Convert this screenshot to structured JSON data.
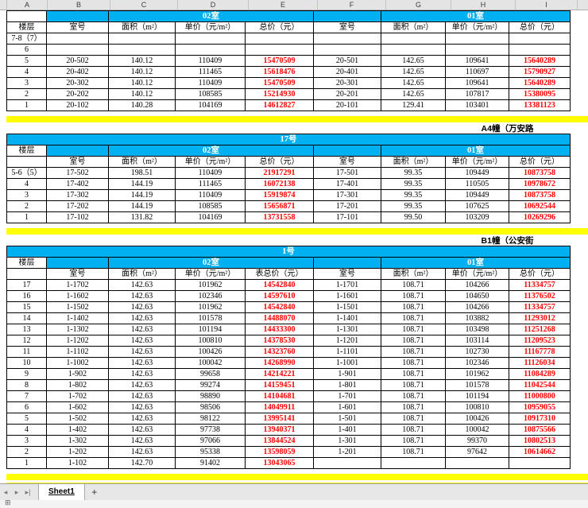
{
  "columns": {
    "letters": [
      "A",
      "B",
      "C",
      "D",
      "E",
      "F",
      "G",
      "H",
      "I"
    ]
  },
  "colors": {
    "cyan": "#00b0f0",
    "yellow": "#ffff00",
    "red": "#ff0000"
  },
  "sections": [
    {
      "banner": "",
      "building": "",
      "unit_row_a": "",
      "header_row_a": "楼层",
      "units": [
        "02室",
        "01室"
      ],
      "headers": [
        "室号",
        "面积（m²）",
        "单价（元/m²）",
        "总价（元）",
        "室号",
        "面积（m²）",
        "单价（元/m²）",
        "总价（元）"
      ],
      "rows": [
        {
          "floor": "7-8（7）",
          "cells": [
            "",
            "",
            "",
            "",
            "",
            "",
            "",
            ""
          ]
        },
        {
          "floor": "6",
          "cells": [
            "",
            "",
            "",
            "",
            "",
            "",
            "",
            ""
          ]
        },
        {
          "floor": "5",
          "cells": [
            "20-502",
            "140.12",
            "110409",
            "15470509",
            "20-501",
            "142.65",
            "109641",
            "15640289"
          ]
        },
        {
          "floor": "4",
          "cells": [
            "20-402",
            "140.12",
            "111465",
            "15618476",
            "20-401",
            "142.65",
            "110697",
            "15790927"
          ]
        },
        {
          "floor": "3",
          "cells": [
            "20-302",
            "140.12",
            "110409",
            "15470509",
            "20-301",
            "142.65",
            "109641",
            "15640289"
          ]
        },
        {
          "floor": "2",
          "cells": [
            "20-202",
            "140.12",
            "108585",
            "15214930",
            "20-201",
            "142.65",
            "107817",
            "15380095"
          ]
        },
        {
          "floor": "1",
          "cells": [
            "20-102",
            "140.28",
            "104169",
            "14612827",
            "20-101",
            "129.41",
            "103401",
            "13381123"
          ]
        }
      ]
    },
    {
      "banner": "A4幢（万安路",
      "building": "17号",
      "unit_row_a": "楼层",
      "header_row_a": "",
      "units": [
        "02室",
        "01室"
      ],
      "headers": [
        "室号",
        "面积（m²）",
        "单价（元/m²）",
        "总价（元）",
        "室号",
        "面积（m²）",
        "单价（元/m²）",
        "总价（元）"
      ],
      "rows": [
        {
          "floor": "5-6（5）",
          "cells": [
            "17-502",
            "198.51",
            "110409",
            "21917291",
            "17-501",
            "99.35",
            "109449",
            "10873758"
          ]
        },
        {
          "floor": "4",
          "cells": [
            "17-402",
            "144.19",
            "111465",
            "16072138",
            "17-401",
            "99.35",
            "110505",
            "10978672"
          ]
        },
        {
          "floor": "3",
          "cells": [
            "17-302",
            "144.19",
            "110409",
            "15919874",
            "17-301",
            "99.35",
            "109449",
            "10873758"
          ]
        },
        {
          "floor": "2",
          "cells": [
            "17-202",
            "144.19",
            "108585",
            "15656871",
            "17-201",
            "99.35",
            "107625",
            "10692544"
          ]
        },
        {
          "floor": "1",
          "cells": [
            "17-102",
            "131.82",
            "104169",
            "13731558",
            "17-101",
            "99.50",
            "103209",
            "10269296"
          ]
        }
      ]
    },
    {
      "banner": "B1幢（公安街",
      "building": "1号",
      "unit_row_a": "楼层",
      "header_row_a": "",
      "units": [
        "02室",
        "01室"
      ],
      "headers": [
        "室号",
        "面积（m²）",
        "单价（元/m²）",
        "表总价（元）",
        "室号",
        "面积（m²）",
        "单价（元/m²）",
        "总价（元）"
      ],
      "rows": [
        {
          "floor": "17",
          "cells": [
            "1-1702",
            "142.63",
            "101962",
            "14542840",
            "1-1701",
            "108.71",
            "104266",
            "11334757"
          ]
        },
        {
          "floor": "16",
          "cells": [
            "1-1602",
            "142.63",
            "102346",
            "14597610",
            "1-1601",
            "108.71",
            "104650",
            "11376502"
          ]
        },
        {
          "floor": "15",
          "cells": [
            "1-1502",
            "142.63",
            "101962",
            "14542840",
            "1-1501",
            "108.71",
            "104266",
            "11334757"
          ]
        },
        {
          "floor": "14",
          "cells": [
            "1-1402",
            "142.63",
            "101578",
            "14488070",
            "1-1401",
            "108.71",
            "103882",
            "11293012"
          ]
        },
        {
          "floor": "13",
          "cells": [
            "1-1302",
            "142.63",
            "101194",
            "14433300",
            "1-1301",
            "108.71",
            "103498",
            "11251268"
          ]
        },
        {
          "floor": "12",
          "cells": [
            "1-1202",
            "142.63",
            "100810",
            "14378530",
            "1-1201",
            "108.71",
            "103114",
            "11209523"
          ]
        },
        {
          "floor": "11",
          "cells": [
            "1-1102",
            "142.63",
            "100426",
            "14323760",
            "1-1101",
            "108.71",
            "102730",
            "11167778"
          ]
        },
        {
          "floor": "10",
          "cells": [
            "1-1002",
            "142.63",
            "100042",
            "14268990",
            "1-1001",
            "108.71",
            "102346",
            "11126034"
          ]
        },
        {
          "floor": "9",
          "cells": [
            "1-902",
            "142.63",
            "99658",
            "14214221",
            "1-901",
            "108.71",
            "101962",
            "11084289"
          ]
        },
        {
          "floor": "8",
          "cells": [
            "1-802",
            "142.63",
            "99274",
            "14159451",
            "1-801",
            "108.71",
            "101578",
            "11042544"
          ]
        },
        {
          "floor": "7",
          "cells": [
            "1-702",
            "142.63",
            "98890",
            "14104681",
            "1-701",
            "108.71",
            "101194",
            "11000800"
          ]
        },
        {
          "floor": "6",
          "cells": [
            "1-602",
            "142.63",
            "98506",
            "14049911",
            "1-601",
            "108.71",
            "100810",
            "10959055"
          ]
        },
        {
          "floor": "5",
          "cells": [
            "1-502",
            "142.63",
            "98122",
            "13995141",
            "1-501",
            "108.71",
            "100426",
            "10917310"
          ]
        },
        {
          "floor": "4",
          "cells": [
            "1-402",
            "142.63",
            "97738",
            "13940371",
            "1-401",
            "108.71",
            "100042",
            "10875566"
          ]
        },
        {
          "floor": "3",
          "cells": [
            "1-302",
            "142.63",
            "97066",
            "13844524",
            "1-301",
            "108.71",
            "99370",
            "10802513"
          ]
        },
        {
          "floor": "2",
          "cells": [
            "1-202",
            "142.63",
            "95338",
            "13598059",
            "1-201",
            "108.71",
            "97642",
            "10614662"
          ]
        },
        {
          "floor": "1",
          "cells": [
            "1-102",
            "142.70",
            "91402",
            "13043065",
            "",
            "",
            "",
            ""
          ]
        }
      ]
    }
  ],
  "tabbar": {
    "nav_prev": "◂",
    "nav_next": "▸",
    "nav_last": "▸|",
    "active_tab": "Sheet1",
    "add_label": "+"
  },
  "statusbar": {
    "grid_icon": "⊞"
  }
}
